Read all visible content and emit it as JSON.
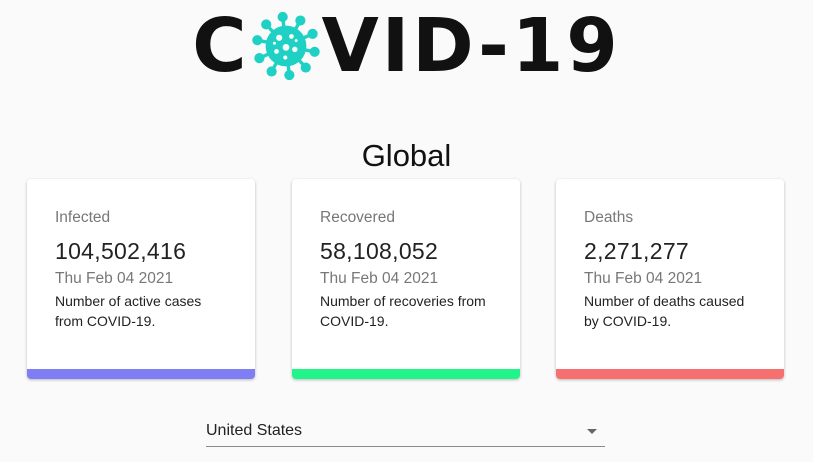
{
  "logo": {
    "text_before": "C",
    "text_after": "VID-19",
    "virus_color": "#1fd1c4"
  },
  "global_title": "Global",
  "cards": [
    {
      "label": "Infected",
      "value": "104,502,416",
      "date": "Thu Feb 04 2021",
      "description": "Number of active cases from COVID-19.",
      "bar_color": "#7f7ef5"
    },
    {
      "label": "Recovered",
      "value": "58,108,052",
      "date": "Thu Feb 04 2021",
      "description": "Number of recoveries from COVID-19.",
      "bar_color": "#21f58a"
    },
    {
      "label": "Deaths",
      "value": "2,271,277",
      "date": "Thu Feb 04 2021",
      "description": "Number of deaths caused by COVID-19.",
      "bar_color": "#f5706e"
    }
  ],
  "country_select": {
    "selected": "United States",
    "icon": "arrow-drop-down-icon"
  }
}
